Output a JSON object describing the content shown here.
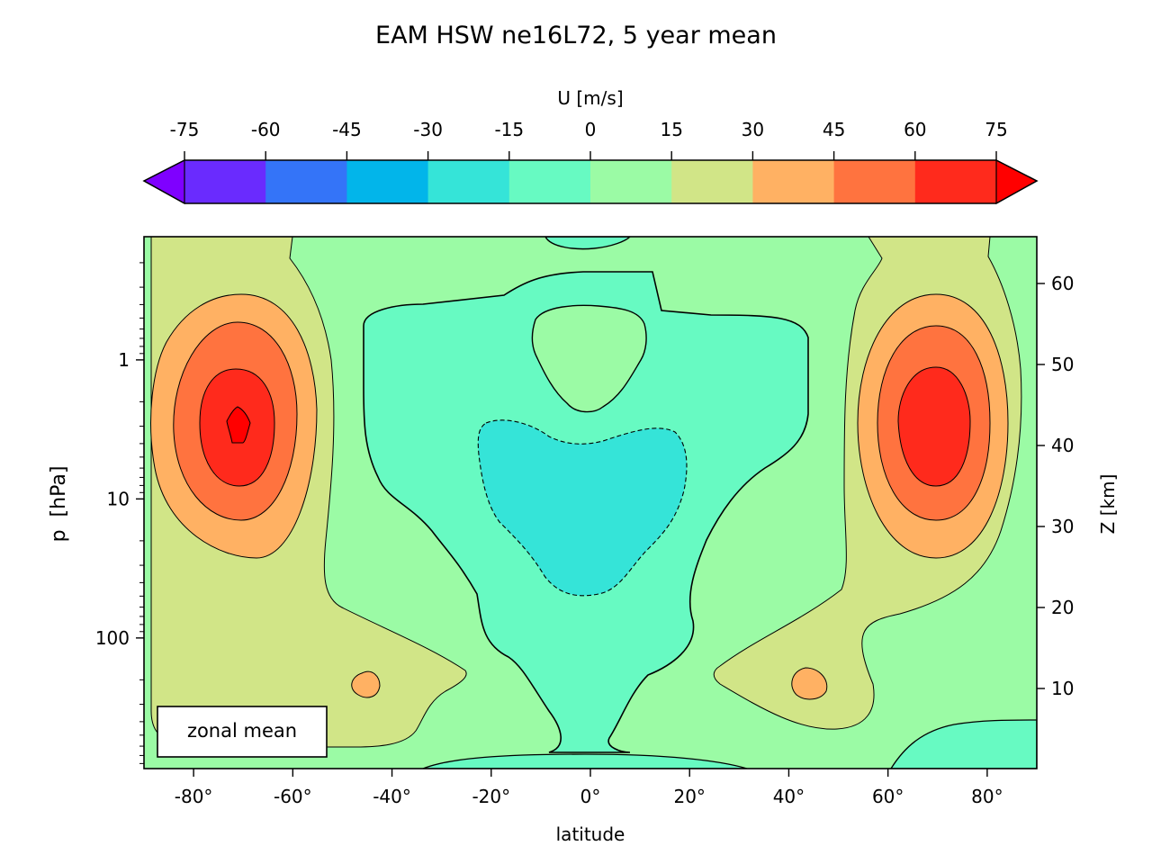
{
  "chart_data": {
    "type": "contour",
    "title": "EAM HSW ne16L72, 5 year mean",
    "colorbar": {
      "label": "U [m/s]",
      "ticks": [
        "-75",
        "-60",
        "-45",
        "-30",
        "-15",
        "0",
        "15",
        "30",
        "45",
        "60",
        "75"
      ],
      "levels": [
        -75,
        -60,
        -45,
        -30,
        -15,
        0,
        15,
        30,
        45,
        60,
        75
      ],
      "colors": [
        "#6a2bfe",
        "#3474f8",
        "#02b5ea",
        "#35e4d8",
        "#67fac2",
        "#9bfba5",
        "#d1e587",
        "#ffb163",
        "#ff733f",
        "#ff2a1c"
      ],
      "extend_low_color": "#7f00ff",
      "extend_high_color": "#ff0000"
    },
    "xlabel": "latitude",
    "x_ticks": [
      "-80°",
      "-60°",
      "-40°",
      "-20°",
      "0°",
      "20°",
      "40°",
      "60°",
      "80°"
    ],
    "x_tick_values": [
      -80,
      -60,
      -40,
      -20,
      0,
      20,
      40,
      60,
      80
    ],
    "xlim": [
      -90,
      90
    ],
    "ylabel_left": "p  [hPa]",
    "y_ticks_left": [
      "1",
      "10",
      "100"
    ],
    "y_tick_values_left": [
      1,
      10,
      100
    ],
    "yscale_left": "log",
    "ylim_left_hPa": [
      870,
      0.13
    ],
    "ylabel_right": "Z [km]",
    "y_ticks_right": [
      "10",
      "20",
      "30",
      "40",
      "50",
      "60"
    ],
    "y_tick_values_right": [
      10,
      20,
      30,
      40,
      50,
      60
    ],
    "annotation": "zonal mean",
    "features": [
      {
        "name": "southern polar jet",
        "lat": -70,
        "p_hPa": 3,
        "peak_u": 75
      },
      {
        "name": "northern polar jet",
        "lat": 70,
        "p_hPa": 3,
        "peak_u": 65
      },
      {
        "name": "southern subtropical jet",
        "lat": -45,
        "p_hPa": 250,
        "peak_u": 32
      },
      {
        "name": "northern subtropical jet",
        "lat": 45,
        "p_hPa": 250,
        "peak_u": 32
      },
      {
        "name": "equatorial easterlies",
        "lat": 0,
        "p_hPa": 10,
        "min_u": -20
      }
    ]
  }
}
